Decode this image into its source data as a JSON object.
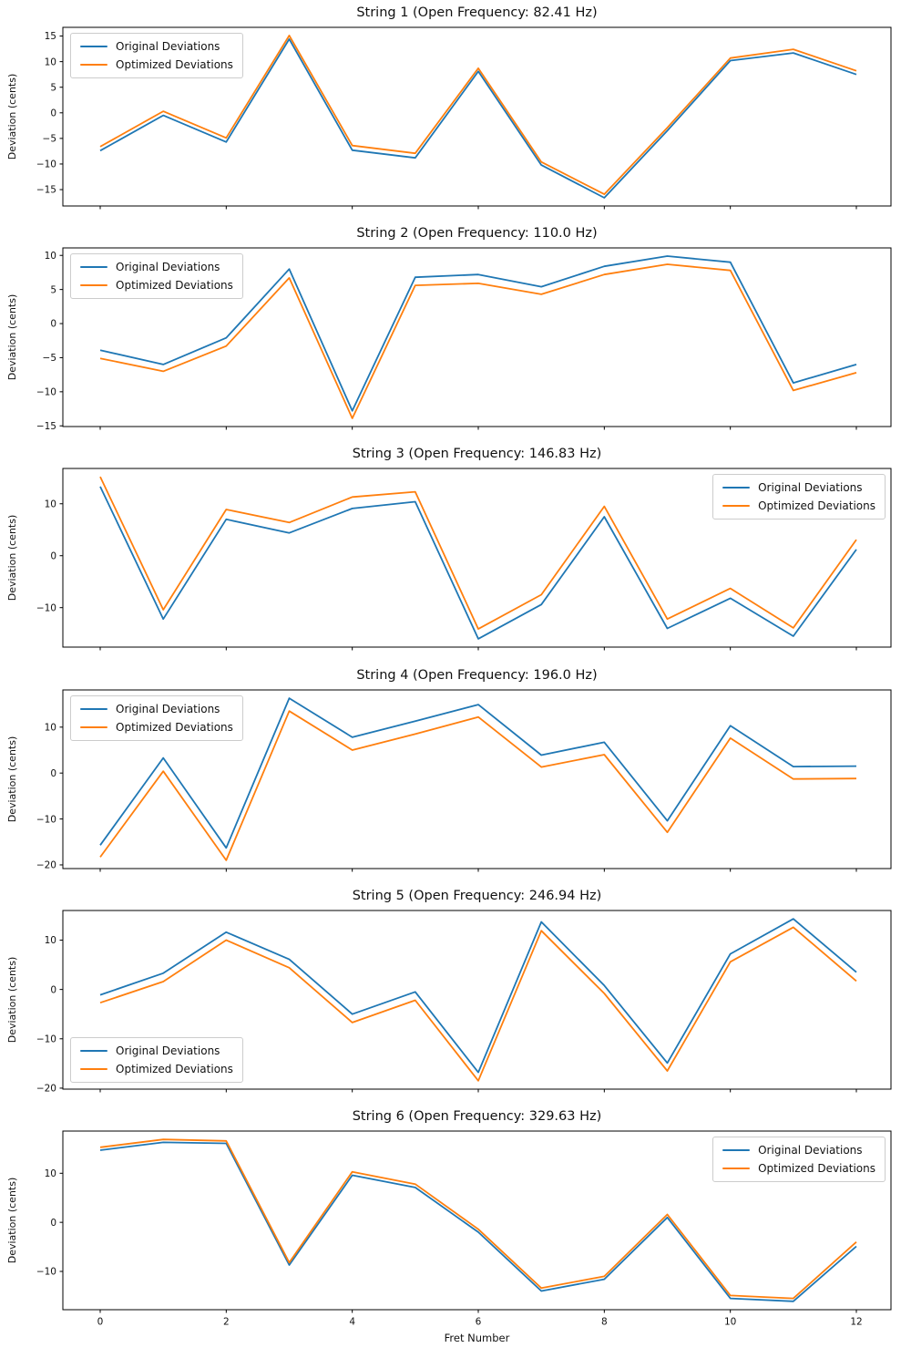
{
  "figure": {
    "xlabel": "Fret Number",
    "ylabel": "Deviation (cents)",
    "x_ticks": [
      0,
      2,
      4,
      6,
      8,
      10,
      12
    ],
    "legend_labels": [
      "Original Deviations",
      "Optimized Deviations"
    ],
    "colors": {
      "original": "#1f77b4",
      "optimized": "#ff7f0e",
      "axes": "#000000",
      "text": "#111111"
    }
  },
  "chart_data": [
    {
      "type": "line",
      "title": "String 1 (Open Frequency: 82.41 Hz)",
      "string_number": 1,
      "open_frequency_hz": 82.41,
      "xlabel": "Fret Number",
      "ylabel": "Deviation (cents)",
      "x": [
        0,
        1,
        2,
        3,
        4,
        5,
        6,
        7,
        8,
        9,
        10,
        11,
        12
      ],
      "yticks": [
        15,
        10,
        5,
        0,
        -5,
        -10,
        -15
      ],
      "ylim": [
        -18.2,
        16.7
      ],
      "legend_position": "upper-left",
      "series": [
        {
          "name": "Original Deviations",
          "color": "#1f77b4",
          "values": [
            -7.4,
            -0.5,
            -5.7,
            14.4,
            -7.3,
            -8.8,
            8.1,
            -10.2,
            -16.6,
            -3.5,
            10.2,
            11.7,
            7.5
          ]
        },
        {
          "name": "Optimized Deviations",
          "color": "#ff7f0e",
          "values": [
            -6.6,
            0.3,
            -4.9,
            15.1,
            -6.4,
            -7.9,
            8.7,
            -9.6,
            -15.9,
            -2.9,
            10.7,
            12.4,
            8.2
          ]
        }
      ]
    },
    {
      "type": "line",
      "title": "String 2 (Open Frequency: 110.0 Hz)",
      "string_number": 2,
      "open_frequency_hz": 110.0,
      "xlabel": "Fret Number",
      "ylabel": "Deviation (cents)",
      "x": [
        0,
        1,
        2,
        3,
        4,
        5,
        6,
        7,
        8,
        9,
        10,
        11,
        12
      ],
      "yticks": [
        10,
        5,
        0,
        -5,
        -10,
        -15
      ],
      "ylim": [
        -15.1,
        11.1
      ],
      "legend_position": "upper-left",
      "series": [
        {
          "name": "Original Deviations",
          "color": "#1f77b4",
          "values": [
            -3.9,
            -6.0,
            -2.1,
            8.0,
            -12.8,
            6.8,
            7.2,
            5.4,
            8.4,
            9.9,
            9.0,
            -8.7,
            -6.0
          ]
        },
        {
          "name": "Optimized Deviations",
          "color": "#ff7f0e",
          "values": [
            -5.1,
            -7.0,
            -3.3,
            6.7,
            -13.9,
            5.6,
            5.9,
            4.3,
            7.2,
            8.7,
            7.8,
            -9.8,
            -7.2
          ]
        }
      ]
    },
    {
      "type": "line",
      "title": "String 3 (Open Frequency: 146.83 Hz)",
      "string_number": 3,
      "open_frequency_hz": 146.83,
      "xlabel": "Fret Number",
      "ylabel": "Deviation (cents)",
      "x": [
        0,
        1,
        2,
        3,
        4,
        5,
        6,
        7,
        8,
        9,
        10,
        11,
        12
      ],
      "yticks": [
        10,
        0,
        -10
      ],
      "ylim": [
        -17.6,
        16.8
      ],
      "legend_position": "upper-right",
      "series": [
        {
          "name": "Original Deviations",
          "color": "#1f77b4",
          "values": [
            13.3,
            -12.2,
            7.0,
            4.4,
            9.1,
            10.4,
            -16.0,
            -9.4,
            7.5,
            -14.0,
            -8.2,
            -15.5,
            1.2
          ]
        },
        {
          "name": "Optimized Deviations",
          "color": "#ff7f0e",
          "values": [
            15.2,
            -10.4,
            8.9,
            6.4,
            11.3,
            12.3,
            -14.1,
            -7.5,
            9.5,
            -12.2,
            -6.3,
            -13.9,
            3.1
          ]
        }
      ]
    },
    {
      "type": "line",
      "title": "String 4 (Open Frequency: 196.0 Hz)",
      "string_number": 4,
      "open_frequency_hz": 196.0,
      "xlabel": "Fret Number",
      "ylabel": "Deviation (cents)",
      "x": [
        0,
        1,
        2,
        3,
        4,
        5,
        6,
        7,
        8,
        9,
        10,
        11,
        12
      ],
      "yticks": [
        10,
        0,
        -10,
        -20
      ],
      "ylim": [
        -20.8,
        18.1
      ],
      "legend_position": "upper-left",
      "series": [
        {
          "name": "Original Deviations",
          "color": "#1f77b4",
          "values": [
            -15.7,
            3.3,
            -16.3,
            16.3,
            7.8,
            11.3,
            14.9,
            3.9,
            6.7,
            -10.4,
            10.3,
            1.4,
            1.5
          ]
        },
        {
          "name": "Optimized Deviations",
          "color": "#ff7f0e",
          "values": [
            -18.3,
            0.4,
            -19.0,
            13.5,
            5.0,
            8.5,
            12.2,
            1.3,
            4.0,
            -12.9,
            7.6,
            -1.3,
            -1.2
          ]
        }
      ]
    },
    {
      "type": "line",
      "title": "String 5 (Open Frequency: 246.94 Hz)",
      "string_number": 5,
      "open_frequency_hz": 246.94,
      "xlabel": "Fret Number",
      "ylabel": "Deviation (cents)",
      "x": [
        0,
        1,
        2,
        3,
        4,
        5,
        6,
        7,
        8,
        9,
        10,
        11,
        12
      ],
      "yticks": [
        10,
        0,
        -10,
        -20
      ],
      "ylim": [
        -20.2,
        16.0
      ],
      "legend_position": "lower-left",
      "series": [
        {
          "name": "Original Deviations",
          "color": "#1f77b4",
          "values": [
            -1.1,
            3.3,
            11.6,
            6.1,
            -5.0,
            -0.5,
            -16.8,
            13.7,
            0.8,
            -14.9,
            7.2,
            14.3,
            3.5
          ]
        },
        {
          "name": "Optimized Deviations",
          "color": "#ff7f0e",
          "values": [
            -2.7,
            1.6,
            10.0,
            4.4,
            -6.7,
            -2.2,
            -18.5,
            11.9,
            -0.8,
            -16.5,
            5.6,
            12.6,
            1.7
          ]
        }
      ]
    },
    {
      "type": "line",
      "title": "String 6 (Open Frequency: 329.63 Hz)",
      "string_number": 6,
      "open_frequency_hz": 329.63,
      "xlabel": "Fret Number",
      "ylabel": "Deviation (cents)",
      "x": [
        0,
        1,
        2,
        3,
        4,
        5,
        6,
        7,
        8,
        9,
        10,
        11,
        12
      ],
      "yticks": [
        10,
        0,
        -10
      ],
      "ylim": [
        -17.8,
        18.6
      ],
      "legend_position": "upper-right",
      "series": [
        {
          "name": "Original Deviations",
          "color": "#1f77b4",
          "values": [
            14.7,
            16.3,
            16.1,
            -8.7,
            9.6,
            7.1,
            -2.0,
            -14.0,
            -11.6,
            1.0,
            -15.5,
            -16.1,
            -4.9
          ]
        },
        {
          "name": "Optimized Deviations",
          "color": "#ff7f0e",
          "values": [
            15.3,
            16.9,
            16.6,
            -8.2,
            10.3,
            7.8,
            -1.4,
            -13.4,
            -11.0,
            1.6,
            -14.9,
            -15.5,
            -4.0
          ]
        }
      ]
    }
  ]
}
